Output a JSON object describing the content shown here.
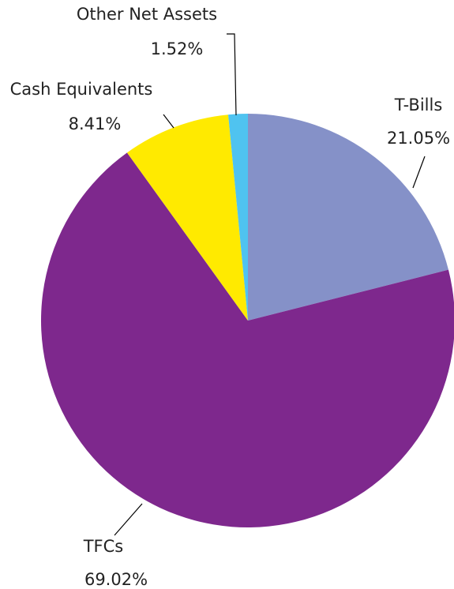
{
  "chart_data": {
    "type": "pie",
    "title": "",
    "slices": [
      {
        "label": "T-Bills",
        "value": 21.05,
        "value_label": "21.05%",
        "color": "#8591C8"
      },
      {
        "label": "TFCs",
        "value": 69.02,
        "value_label": "69.02%",
        "color": "#7E288D"
      },
      {
        "label": "Cash Equivalents",
        "value": 8.41,
        "value_label": "8.41%",
        "color": "#FFEA00"
      },
      {
        "label": "Other Net Assets",
        "value": 1.52,
        "value_label": "1.52%",
        "color": "#4FC3F0"
      }
    ],
    "start_angle": "12 o'clock",
    "direction": "clockwise",
    "legend": "none"
  }
}
